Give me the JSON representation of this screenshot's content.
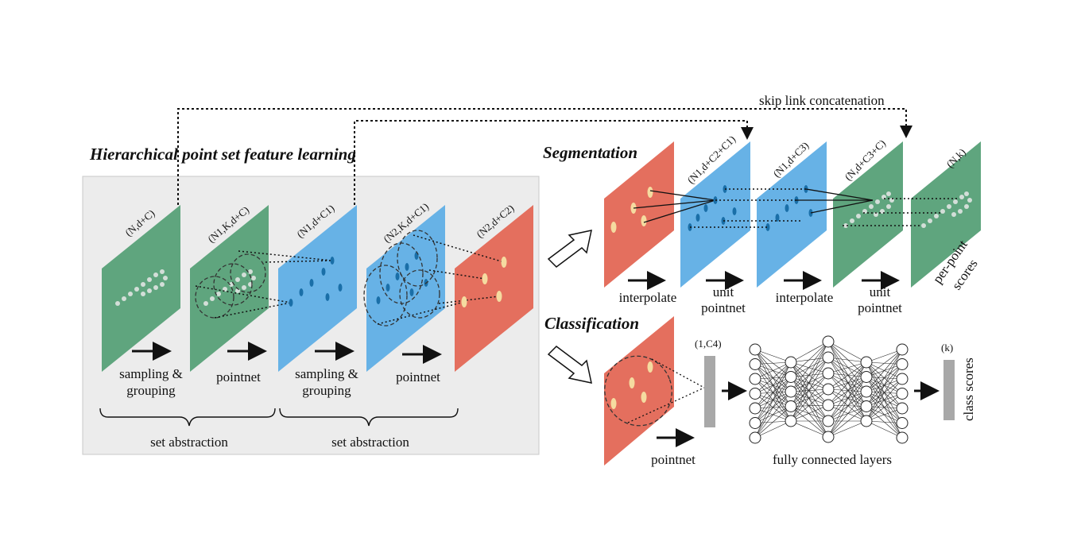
{
  "titles": {
    "hierarchical": "Hierarchical point set feature learning",
    "segmentation": "Segmentation",
    "classification": "Classification"
  },
  "skip_link": "skip link concatenation",
  "hier": {
    "dims": [
      "(N,d+C)",
      "(N1,K,d+C)",
      "(N1,d+C1)",
      "(N2,K,d+C1)",
      "(N2,d+C2)"
    ],
    "ops": [
      "sampling &",
      "grouping",
      "pointnet",
      "sampling &",
      "grouping",
      "pointnet"
    ],
    "braces": [
      "set abstraction",
      "set abstraction"
    ]
  },
  "seg": {
    "dims": [
      "(N1,d+C2+C1)",
      "(N1,d+C3)",
      "(N,d+C3+C)",
      "(N,k)"
    ],
    "ops": [
      "interpolate",
      "unit",
      "pointnet",
      "interpolate",
      "unit",
      "pointnet"
    ],
    "scores": [
      "per-point",
      "scores"
    ]
  },
  "cls": {
    "dim_vec": "(1,C4)",
    "dim_out": "(k)",
    "op_pointnet": "pointnet",
    "fc": "fully connected layers",
    "class_scores": "class scores"
  },
  "colors": {
    "green": "#5fa57e",
    "blue": "#67b2e6",
    "red": "#e46f5e",
    "panel": "#ececec",
    "point": "#f5dba0",
    "dark_point": "#1a6fa8"
  }
}
